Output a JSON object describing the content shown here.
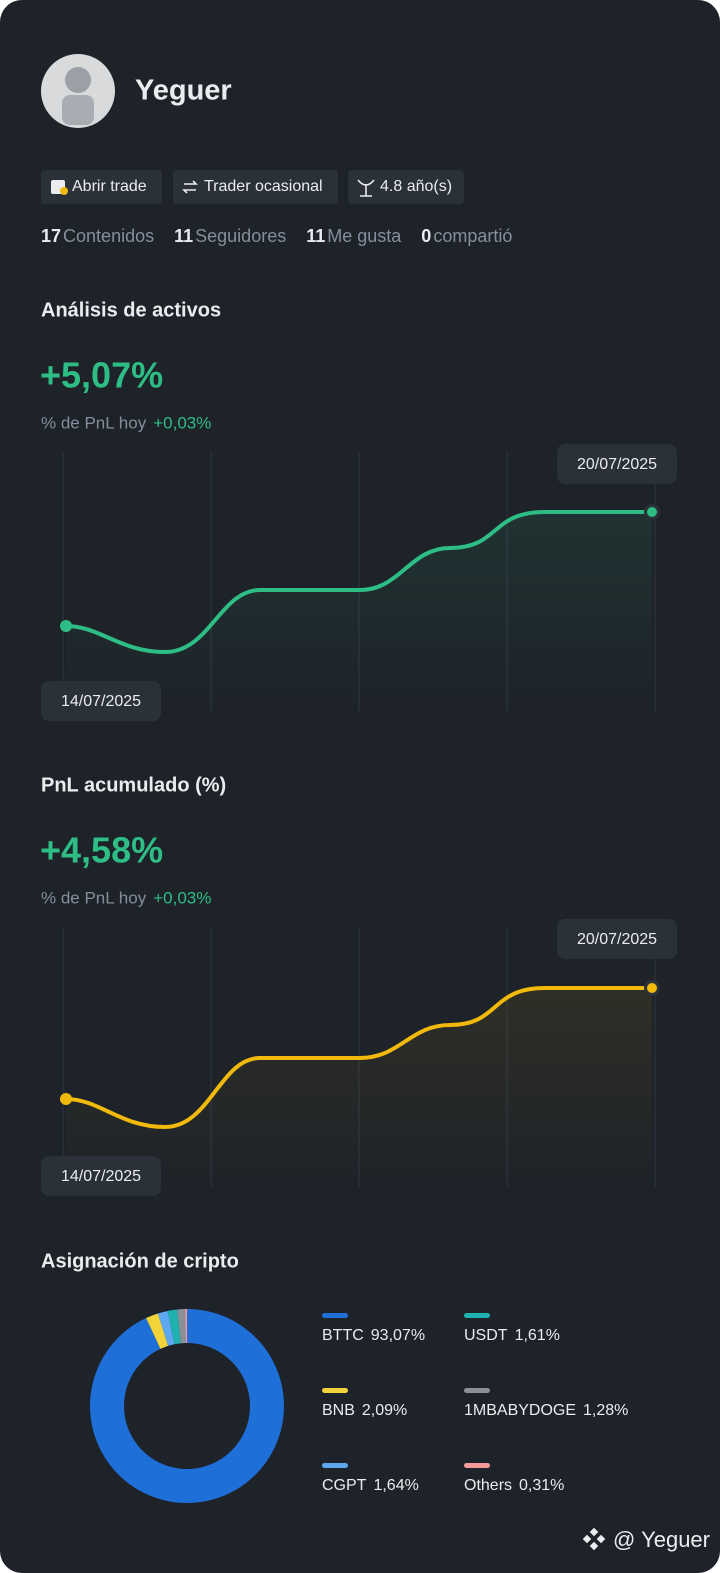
{
  "profile": {
    "name": "Yeguer",
    "badges": [
      "Abrir trade",
      "Trader ocasional",
      "4.8 año(s)"
    ],
    "stats": [
      {
        "value": "17",
        "label": "Contenidos"
      },
      {
        "value": "11",
        "label": "Seguidores"
      },
      {
        "value": "11",
        "label": "Me gusta"
      },
      {
        "value": "0",
        "label": "compartió"
      }
    ]
  },
  "asset_analysis": {
    "title": "Análisis de activos",
    "value": "+5,07%",
    "subtitle": "% de PnL hoy",
    "change": "+0,03%",
    "start_date": "14/07/2025",
    "end_date": "20/07/2025"
  },
  "cumulative_pnl": {
    "title": "PnL acumulado (%)",
    "value": "+4,58%",
    "subtitle": "% de PnL hoy",
    "change": "+0,03%",
    "start_date": "14/07/2025",
    "end_date": "20/07/2025"
  },
  "chart_data": {
    "type": "pie",
    "title": "Asignación de cripto",
    "categories": [
      "BTTC",
      "BNB",
      "CGPT",
      "USDT",
      "1MBABYDOGE",
      "Others"
    ],
    "values": [
      93.07,
      2.09,
      1.64,
      1.61,
      1.28,
      0.31
    ],
    "value_labels": [
      "93,07%",
      "2,09%",
      "1,64%",
      "1,61%",
      "1,28%",
      "0,31%"
    ],
    "colors": [
      "#1f6fd9",
      "#f3d33a",
      "#5ea8f2",
      "#1fb0b0",
      "#8a8f98",
      "#f49a9a"
    ]
  },
  "watermark": "@ Yeguer"
}
